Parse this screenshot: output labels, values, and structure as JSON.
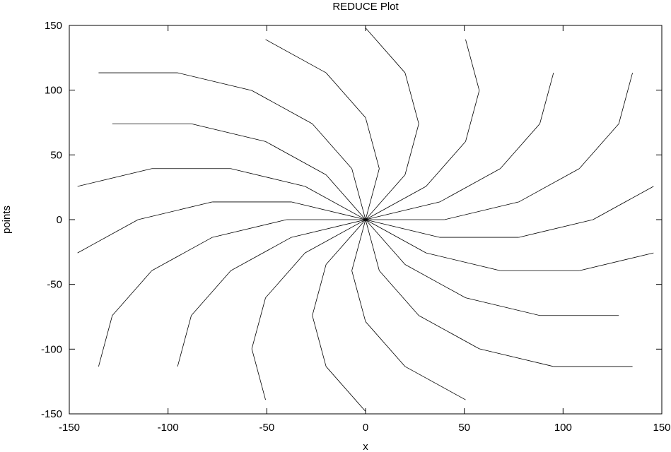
{
  "chart_data": {
    "type": "line",
    "title": "REDUCE Plot",
    "xlabel": "x",
    "ylabel": "points",
    "xlim": [
      -150,
      150
    ],
    "ylim": [
      -150,
      150
    ],
    "xticks": [
      -150,
      -100,
      -50,
      0,
      50,
      100,
      150
    ],
    "yticks": [
      -150,
      -100,
      -50,
      0,
      50,
      100,
      150
    ],
    "xtick_labels": [
      "-150",
      "-100",
      "-50",
      "0",
      "50",
      "100",
      "150"
    ],
    "ytick_labels": [
      "-150",
      "-100",
      "-50",
      "0",
      "50",
      "100",
      "150"
    ],
    "grid": false,
    "line_color": "#000000",
    "background": "#ffffff",
    "construction": {
      "description": "unit vectors at angles k*pi/9, scaled by 40; vertex (a,b) = 40*(e_a + e_b) for rhombus cells",
      "directions": 18,
      "step": 40
    }
  }
}
